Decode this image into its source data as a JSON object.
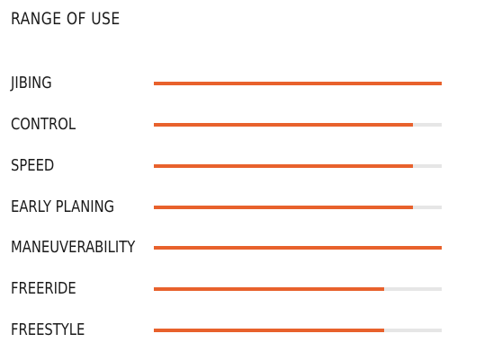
{
  "title": "RANGE OF USE",
  "colors": {
    "fill": "#e8612c",
    "track": "#e6e6e6"
  },
  "ratings": [
    {
      "label": "JIBING",
      "level": 1.0
    },
    {
      "label": "CONTROL",
      "level": 0.9
    },
    {
      "label": "SPEED",
      "level": 0.9
    },
    {
      "label": "EARLY PLANING",
      "level": 0.9
    },
    {
      "label": "MANEUVERABILITY",
      "level": 1.0
    },
    {
      "label": "FREERIDE",
      "level": 0.8
    },
    {
      "label": "FREESTYLE",
      "level": 0.8
    }
  ]
}
